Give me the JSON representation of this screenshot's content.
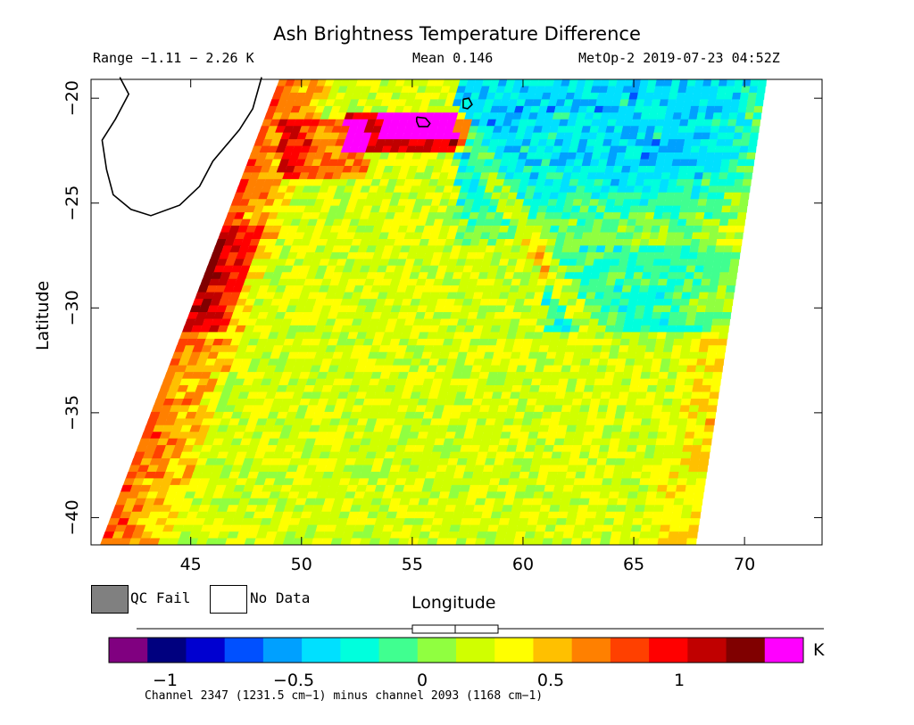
{
  "chart_data": {
    "type": "heatmap",
    "title": "Ash Brightness Temperature Difference",
    "range_label": "Range −1.11 − 2.26 K",
    "mean_label": "Mean 0.146",
    "source_label": "MetOp-2 2019-07-23 04:52Z",
    "xlabel": "Longitude",
    "ylabel": "Latitude",
    "xlim": [
      40.5,
      73.5
    ],
    "ylim": [
      -41.3,
      -19.1
    ],
    "x_ticks": [
      45,
      50,
      55,
      60,
      65,
      70
    ],
    "x_tick_labels": [
      "45",
      "50",
      "55",
      "60",
      "65",
      "70"
    ],
    "y_ticks": [
      -20,
      -25,
      -30,
      -35,
      -40
    ],
    "y_tick_labels": [
      "−20",
      "−25",
      "−30",
      "−35",
      "−40"
    ],
    "range": {
      "min": -1.11,
      "max": 2.26
    },
    "mean": 0.146,
    "legend": [
      {
        "label": "QC Fail",
        "color": "#808080"
      },
      {
        "label": "No Data",
        "color": "#ffffff"
      }
    ],
    "colorbar": {
      "unit": "K",
      "ticks": [
        -1,
        -0.5,
        0,
        0.5,
        1
      ],
      "tick_labels": [
        "−1",
        "−0.5",
        "0",
        "0.5",
        "1"
      ],
      "colors": [
        "#800080",
        "#00007f",
        "#0000d0",
        "#0050ff",
        "#00a0ff",
        "#00e0ff",
        "#00ffdd",
        "#40ff90",
        "#90ff40",
        "#d0ff00",
        "#ffff00",
        "#ffc000",
        "#ff8000",
        "#ff4000",
        "#ff0000",
        "#c00000",
        "#800000",
        "#ff00ff"
      ],
      "caption": "Channel 2347 (1231.5 cm−1) minus channel 2093 (1168 cm−1)"
    },
    "coastline": [
      [
        41.8,
        -19.0
      ],
      [
        42.2,
        -19.8
      ],
      [
        41.6,
        -21.0
      ],
      [
        41.0,
        -22.0
      ],
      [
        41.2,
        -23.4
      ],
      [
        41.5,
        -24.6
      ],
      [
        42.3,
        -25.3
      ],
      [
        43.2,
        -25.6
      ],
      [
        44.5,
        -25.1
      ],
      [
        45.4,
        -24.2
      ],
      [
        46.0,
        -23.0
      ],
      [
        47.2,
        -21.5
      ],
      [
        47.8,
        -20.5
      ],
      [
        48.2,
        -19.0
      ]
    ],
    "islands": [
      [
        [
          55.2,
          -20.9
        ],
        [
          55.6,
          -20.95
        ],
        [
          55.8,
          -21.2
        ],
        [
          55.7,
          -21.35
        ],
        [
          55.3,
          -21.35
        ],
        [
          55.2,
          -21.1
        ],
        [
          55.2,
          -20.9
        ]
      ],
      [
        [
          57.3,
          -20.05
        ],
        [
          57.55,
          -20.0
        ],
        [
          57.7,
          -20.3
        ],
        [
          57.5,
          -20.5
        ],
        [
          57.3,
          -20.45
        ],
        [
          57.3,
          -20.05
        ]
      ]
    ],
    "swath": [
      [
        49.0,
        -19.1
      ],
      [
        71.0,
        -19.1
      ],
      [
        67.8,
        -41.3
      ],
      [
        40.9,
        -41.3
      ]
    ],
    "features": [
      {
        "name": "south-west edge high values",
        "value": 0.8
      },
      {
        "name": "volcanic plume near 53-57E, -21S",
        "value": 1.5
      },
      {
        "name": "north-east low values",
        "value": -0.6
      }
    ]
  }
}
